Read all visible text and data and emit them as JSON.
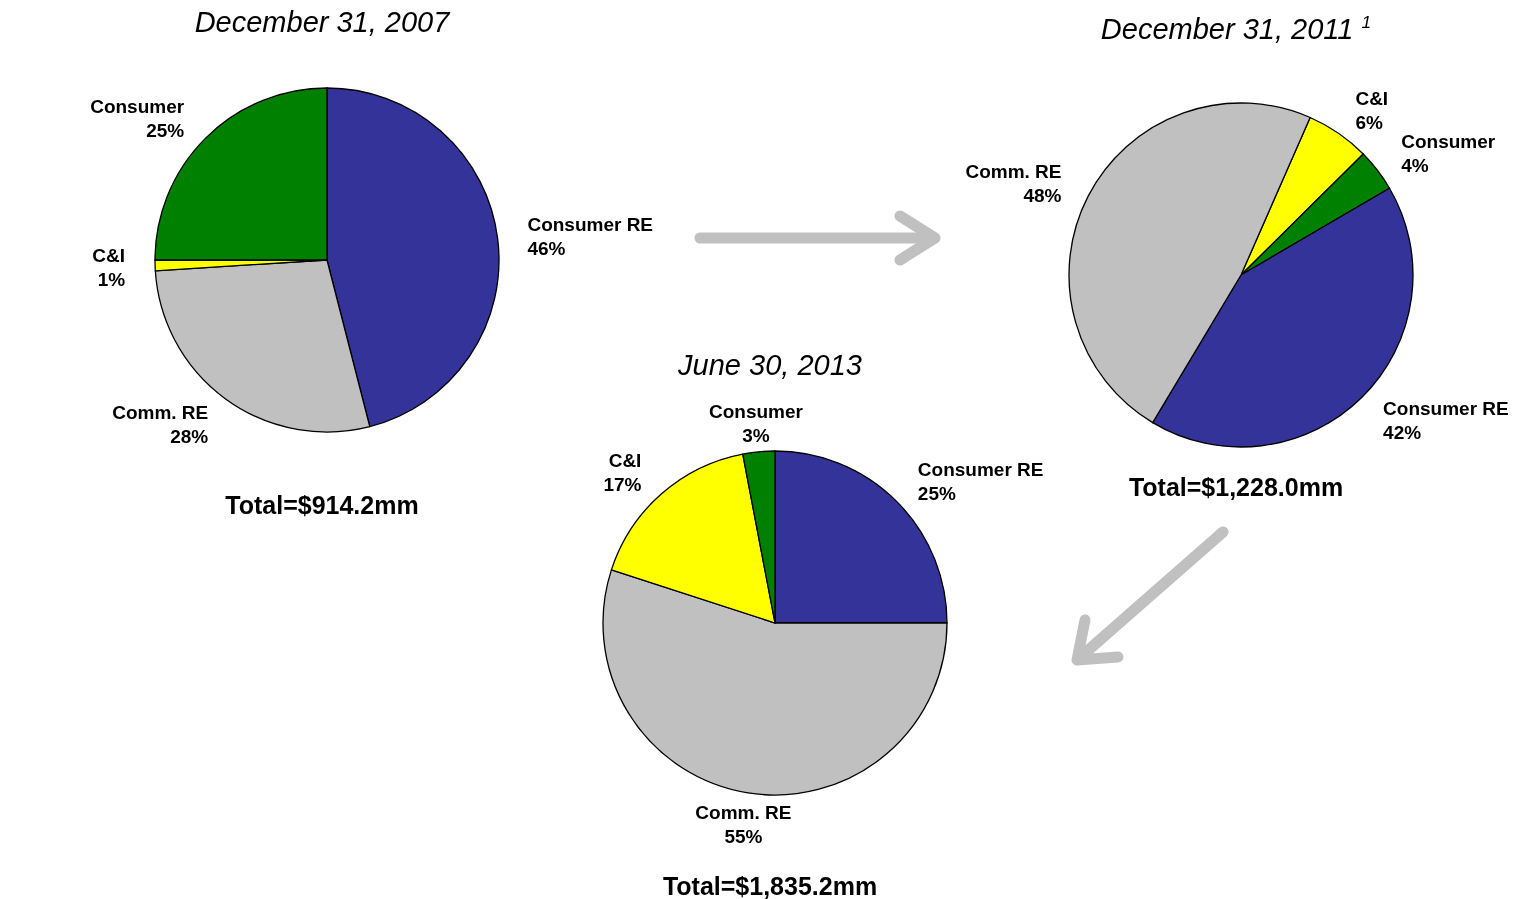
{
  "chart_data": [
    {
      "type": "pie",
      "title": "December 31, 2007",
      "categories": [
        "Consumer RE",
        "Comm. RE",
        "C&I",
        "Consumer"
      ],
      "values": [
        46,
        28,
        1,
        25
      ],
      "value_labels": [
        "46%",
        "28%",
        "1%",
        "25%"
      ],
      "colors": [
        "#333399",
        "#c0c0c0",
        "#ffff00",
        "#008000"
      ],
      "annotations": [
        "Total=$914.2mm"
      ]
    },
    {
      "type": "pie",
      "title": "December 31, 2011 $^{1}$",
      "categories": [
        "C&I",
        "Consumer",
        "Consumer RE",
        "Comm. RE"
      ],
      "values": [
        6,
        4,
        42,
        48
      ],
      "value_labels": [
        "6%",
        "4%",
        "42%",
        "48%"
      ],
      "colors": [
        "#ffff00",
        "#008000",
        "#333399",
        "#c0c0c0"
      ],
      "annotations": [
        "Total=$1,228.0mm"
      ]
    },
    {
      "type": "pie",
      "title": "June 30, 2013",
      "categories": [
        "Consumer RE",
        "Comm. RE",
        "C&I",
        "Consumer"
      ],
      "values": [
        25,
        55,
        17,
        3
      ],
      "value_labels": [
        "25%",
        "55%",
        "17%",
        "3%"
      ],
      "colors": [
        "#333399",
        "#c0c0c0",
        "#ffff00",
        "#008000"
      ],
      "annotations": [
        "Total=$1,835.2mm"
      ]
    }
  ]
}
